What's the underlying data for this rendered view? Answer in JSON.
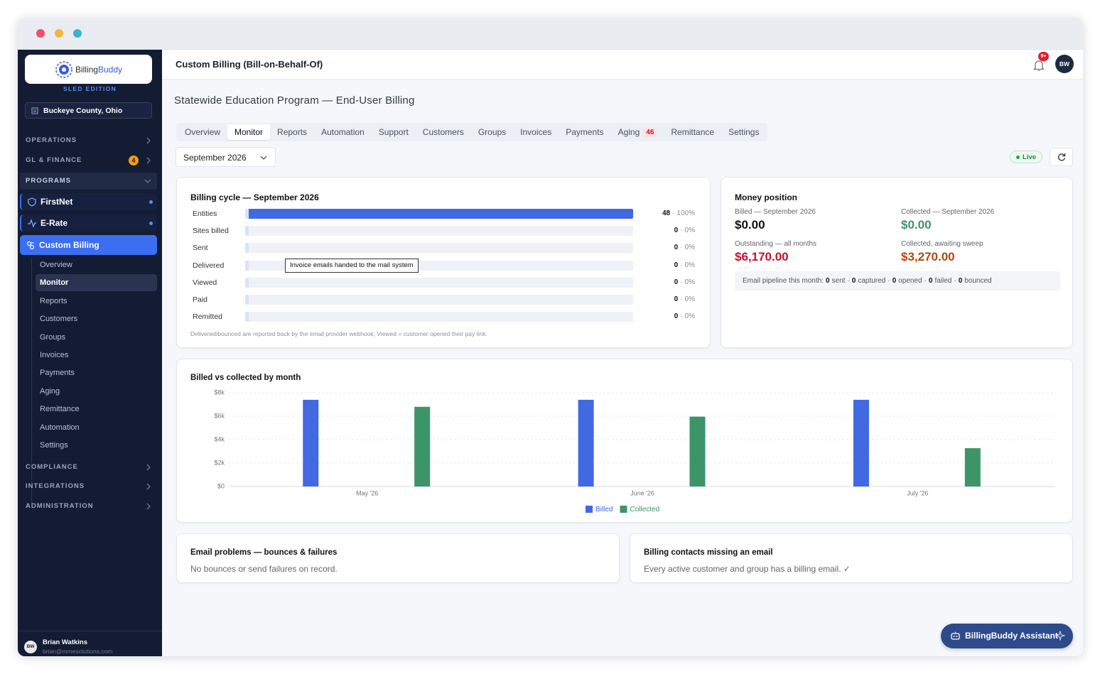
{
  "sidebar": {
    "logo": {
      "brand_a": "Billing",
      "brand_b": "Buddy"
    },
    "edition": "SLED EDITION",
    "org": "Buckeye County, Ohio",
    "sections_top": [
      {
        "label": "OPERATIONS"
      },
      {
        "label": "GL & FINANCE",
        "badge": 4
      }
    ],
    "programs": {
      "label": "PROGRAMS",
      "items": [
        {
          "label": "FirstNet"
        },
        {
          "label": "E-Rate"
        },
        {
          "label": "Custom Billing",
          "active": true
        }
      ],
      "subitems": [
        {
          "label": "Overview"
        },
        {
          "label": "Monitor",
          "active": true
        },
        {
          "label": "Reports"
        },
        {
          "label": "Customers"
        },
        {
          "label": "Groups"
        },
        {
          "label": "Invoices"
        },
        {
          "label": "Payments"
        },
        {
          "label": "Aging"
        },
        {
          "label": "Remittance"
        },
        {
          "label": "Automation"
        },
        {
          "label": "Settings"
        }
      ]
    },
    "sections_bottom": [
      {
        "label": "COMPLIANCE"
      },
      {
        "label": "INTEGRATIONS"
      },
      {
        "label": "ADMINISTRATION"
      }
    ],
    "user": {
      "initials": "BW",
      "name": "Brian Watkins",
      "email": "brian@mmesolutions.com"
    }
  },
  "header": {
    "title": "Custom Billing (Bill-on-Behalf-Of)",
    "notification_badge": "9+",
    "avatar": "BW"
  },
  "page": {
    "title": "Statewide Education Program — End-User Billing",
    "tabs": [
      {
        "label": "Overview"
      },
      {
        "label": "Monitor",
        "active": true
      },
      {
        "label": "Reports"
      },
      {
        "label": "Automation"
      },
      {
        "label": "Support"
      },
      {
        "label": "Customers"
      },
      {
        "label": "Groups"
      },
      {
        "label": "Invoices"
      },
      {
        "label": "Payments"
      },
      {
        "label": "Aging",
        "badge": 46
      },
      {
        "label": "Remittance"
      },
      {
        "label": "Settings"
      }
    ],
    "month": "September 2026",
    "status": "Live"
  },
  "billing_cycle": {
    "title": "Billing cycle — September 2026",
    "separator": "·",
    "rows": [
      {
        "label": "Entities",
        "count": 48,
        "percent": 100,
        "percent_label": "100%"
      },
      {
        "label": "Sites billed",
        "count": 0,
        "percent": 0,
        "percent_label": "0%"
      },
      {
        "label": "Sent",
        "count": 0,
        "percent": 0,
        "percent_label": "0%"
      },
      {
        "label": "Delivered",
        "count": 0,
        "percent": 0,
        "percent_label": "0%"
      },
      {
        "label": "Viewed",
        "count": 0,
        "percent": 0,
        "percent_label": "0%"
      },
      {
        "label": "Paid",
        "count": 0,
        "percent": 0,
        "percent_label": "0%"
      },
      {
        "label": "Remitted",
        "count": 0,
        "percent": 0,
        "percent_label": "0%"
      }
    ],
    "tooltip": "Invoice emails handed to the mail system",
    "footnote": "Delivered/bounced are reported back by the email provider webhook; Viewed = customer opened their pay link."
  },
  "money_position": {
    "title": "Money position",
    "items": [
      {
        "label": "Billed — September 2026",
        "value": "$0.00",
        "color": "#111111"
      },
      {
        "label": "Collected — September 2026",
        "value": "$0.00",
        "color": "#3d9467"
      },
      {
        "label": "Outstanding — all months",
        "value": "$6,170.00",
        "color": "#c8102e"
      },
      {
        "label": "Collected, awaiting sweep",
        "value": "$3,270.00",
        "color": "#b4480f"
      }
    ],
    "pipeline": {
      "prefix": "Email pipeline this month:",
      "separator": "·",
      "items": [
        {
          "count": 0,
          "label": "sent"
        },
        {
          "count": 0,
          "label": "captured"
        },
        {
          "count": 0,
          "label": "opened"
        },
        {
          "count": 0,
          "label": "failed"
        },
        {
          "count": 0,
          "label": "bounced"
        }
      ]
    }
  },
  "chart_data": {
    "type": "bar",
    "title": "Billed vs collected by month",
    "categories": [
      "May '26",
      "June '26",
      "July '26"
    ],
    "series": [
      {
        "name": "Billed",
        "color": "#4169e1",
        "values": [
          7400,
          7400,
          7400
        ]
      },
      {
        "name": "Collected",
        "color": "#3d9467",
        "values": [
          6800,
          5960,
          3270
        ]
      }
    ],
    "ylim": [
      0,
      8000
    ],
    "yticks": [
      {
        "value": 0,
        "label": "$0"
      },
      {
        "value": 2000,
        "label": "$2k"
      },
      {
        "value": 4000,
        "label": "$4k"
      },
      {
        "value": 6000,
        "label": "$6k"
      },
      {
        "value": 8000,
        "label": "$8k"
      }
    ],
    "grid": true,
    "legend": "bottom"
  },
  "email_problems": {
    "title": "Email problems — bounces & failures",
    "message": "No bounces or send failures on record."
  },
  "missing_contacts": {
    "title": "Billing contacts missing an email",
    "message": "Every active customer and group has a billing email. ✓"
  },
  "assistant": {
    "label": "BillingBuddy Assistant"
  }
}
